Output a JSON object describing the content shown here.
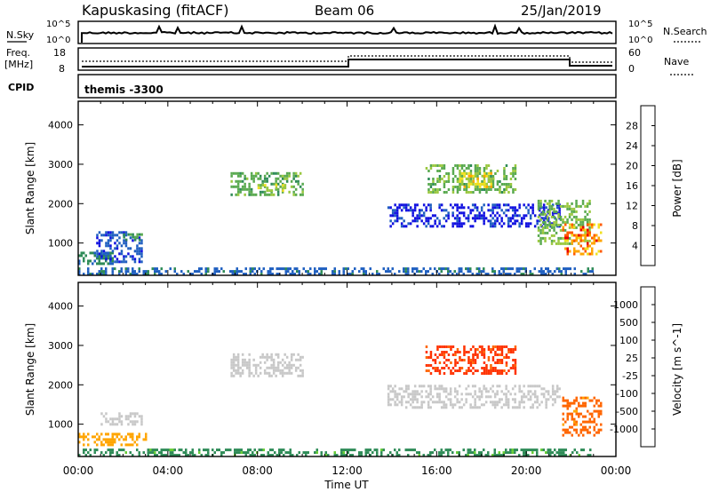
{
  "header": {
    "station": "Kapuskasing (fitACF)",
    "beam": "Beam 06",
    "date": "25/Jan/2019"
  },
  "strip_labels": {
    "nsky": "N.Sky",
    "nsearch": "N.Search",
    "freq": "Freq.",
    "freq_unit": "[MHz]",
    "nave": "Nave",
    "cpid": "CPID",
    "cpid_value": "themis -3300"
  },
  "strip_ticks": {
    "noise_left": [
      "10^5",
      "10^0"
    ],
    "noise_right": [
      "10^5",
      "10^0"
    ],
    "freq_left": [
      "18",
      "8"
    ],
    "nave_right": [
      "60",
      "0"
    ]
  },
  "colors": {
    "power": [
      "#1010e0",
      "#1f5fc0",
      "#2e8b57",
      "#5aaa50",
      "#9ac840",
      "#f0e020",
      "#ffa500",
      "#ff5a00",
      "#e80000"
    ],
    "velocity": [
      "#1010e0",
      "#2060c0",
      "#2e8b57",
      "#66cc33",
      "#c8c8c8",
      "#ffa500",
      "#ff6600",
      "#ff3300",
      "#e80000"
    ]
  },
  "chart_data": [
    {
      "type": "heatmap",
      "title": "",
      "ylabel": "Slant Range [km]",
      "colorbar_label": "Power [dB]",
      "colorbar_ticks": [
        "4",
        "8",
        "12",
        "16",
        "20",
        "24",
        "28"
      ],
      "xlim": [
        0,
        24
      ],
      "ylim": [
        180,
        4600
      ],
      "yticks": [
        1000,
        2000,
        3000,
        4000
      ],
      "regions": [
        {
          "t": [
            0.0,
            23.0
          ],
          "r": [
            200,
            380
          ],
          "v": 8
        },
        {
          "t": [
            0.0,
            1.5
          ],
          "r": [
            450,
            780
          ],
          "v": 10
        },
        {
          "t": [
            0.8,
            2.8
          ],
          "r": [
            500,
            1300
          ],
          "v": 6
        },
        {
          "t": [
            2.0,
            2.8
          ],
          "r": [
            1050,
            1250
          ],
          "v": 12
        },
        {
          "t": [
            6.8,
            10.0
          ],
          "r": [
            2200,
            2800
          ],
          "v": 14
        },
        {
          "t": [
            8.0,
            9.2
          ],
          "r": [
            2300,
            2500
          ],
          "v": 18
        },
        {
          "t": [
            13.8,
            21.5
          ],
          "r": [
            1450,
            2000
          ],
          "v": 5
        },
        {
          "t": [
            15.5,
            19.5
          ],
          "r": [
            2300,
            3000
          ],
          "v": 15
        },
        {
          "t": [
            17.0,
            18.5
          ],
          "r": [
            2450,
            2800
          ],
          "v": 20
        },
        {
          "t": [
            20.5,
            22.8
          ],
          "r": [
            1000,
            2100
          ],
          "v": 16
        },
        {
          "t": [
            21.6,
            23.3
          ],
          "r": [
            700,
            1500
          ],
          "v": 26
        }
      ]
    },
    {
      "type": "heatmap",
      "title": "",
      "ylabel": "Slant Range [km]",
      "xlabel": "Time UT",
      "colorbar_label": "Velocity [m s^-1]",
      "colorbar_ticks": [
        "1000",
        "500",
        "100",
        "25",
        "-25",
        "-100",
        "-500",
        "-1000"
      ],
      "xlim": [
        0,
        24
      ],
      "ylim": [
        180,
        4600
      ],
      "xticks": [
        "00:00",
        "04:00",
        "08:00",
        "12:00",
        "16:00",
        "20:00",
        "00:00"
      ],
      "yticks": [
        1000,
        2000,
        3000,
        4000
      ],
      "regions": [
        {
          "t": [
            0.0,
            23.0
          ],
          "r": [
            200,
            380
          ],
          "v": 60
        },
        {
          "t": [
            0.0,
            3.0
          ],
          "r": [
            450,
            780
          ],
          "v": -80
        },
        {
          "t": [
            1.0,
            2.8
          ],
          "r": [
            1000,
            1300
          ],
          "v": 0
        },
        {
          "t": [
            6.8,
            10.0
          ],
          "r": [
            2200,
            2800
          ],
          "v": 0
        },
        {
          "t": [
            13.8,
            21.5
          ],
          "r": [
            1450,
            2000
          ],
          "v": 0
        },
        {
          "t": [
            15.5,
            19.5
          ],
          "r": [
            2300,
            3000
          ],
          "v": -350
        },
        {
          "t": [
            21.6,
            23.3
          ],
          "r": [
            700,
            1700
          ],
          "v": -120
        }
      ]
    }
  ]
}
